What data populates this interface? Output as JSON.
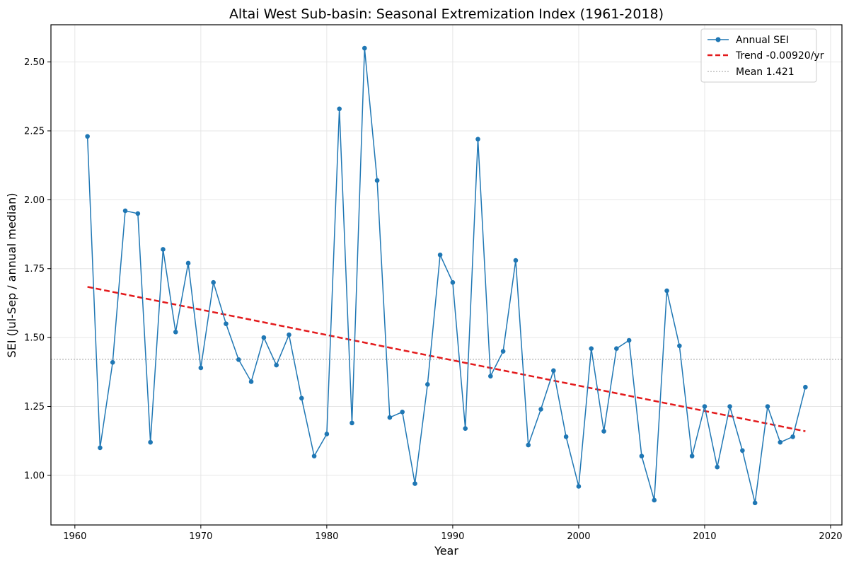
{
  "chart_data": {
    "type": "line",
    "title": "Altai West Sub-basin: Seasonal Extremization Index (1961-2018)",
    "xlabel": "Year",
    "ylabel": "SEI (Jul-Sep / annual median)",
    "xlim": [
      1958.1,
      2020.9
    ],
    "ylim": [
      0.82,
      2.635
    ],
    "xticks": [
      1960,
      1970,
      1980,
      1990,
      2000,
      2010,
      2020
    ],
    "yticks": [
      1.0,
      1.25,
      1.5,
      1.75,
      2.0,
      2.25,
      2.5
    ],
    "xtick_labels": [
      "1960",
      "1970",
      "1980",
      "1990",
      "2000",
      "2010",
      "2020"
    ],
    "ytick_labels": [
      "1.00",
      "1.25",
      "1.50",
      "1.75",
      "2.00",
      "2.25",
      "2.50"
    ],
    "grid": true,
    "legend_position": "top-right",
    "colors": {
      "series": "#1f77b4",
      "trend": "#e31a1c",
      "mean": "#b0b0b0"
    },
    "series": [
      {
        "name": "Annual SEI",
        "x": [
          1961,
          1962,
          1963,
          1964,
          1965,
          1966,
          1967,
          1968,
          1969,
          1970,
          1971,
          1972,
          1973,
          1974,
          1975,
          1976,
          1977,
          1978,
          1979,
          1980,
          1981,
          1982,
          1983,
          1984,
          1985,
          1986,
          1987,
          1988,
          1989,
          1990,
          1991,
          1992,
          1993,
          1994,
          1995,
          1996,
          1997,
          1998,
          1999,
          2000,
          2001,
          2002,
          2003,
          2004,
          2005,
          2006,
          2007,
          2008,
          2009,
          2010,
          2011,
          2012,
          2013,
          2014,
          2015,
          2016,
          2017,
          2018
        ],
        "values": [
          2.23,
          1.1,
          1.41,
          1.96,
          1.95,
          1.12,
          1.82,
          1.52,
          1.77,
          1.39,
          1.7,
          1.55,
          1.42,
          1.34,
          1.5,
          1.4,
          1.51,
          1.28,
          1.07,
          1.15,
          2.33,
          1.19,
          2.55,
          2.07,
          1.21,
          1.23,
          0.97,
          1.33,
          1.8,
          1.7,
          1.17,
          2.22,
          1.36,
          1.45,
          1.78,
          1.11,
          1.24,
          1.38,
          1.14,
          0.96,
          1.46,
          1.16,
          1.46,
          1.49,
          1.07,
          0.91,
          1.67,
          1.47,
          1.07,
          1.25,
          1.03,
          1.25,
          1.09,
          0.9,
          1.25,
          1.12,
          1.14,
          1.32
        ]
      },
      {
        "name": "Trend -0.00920/yr",
        "x": [
          1961,
          2018
        ],
        "values": [
          1.684,
          1.16
        ]
      },
      {
        "name": "Mean 1.421",
        "values": [
          1.421
        ]
      }
    ]
  }
}
